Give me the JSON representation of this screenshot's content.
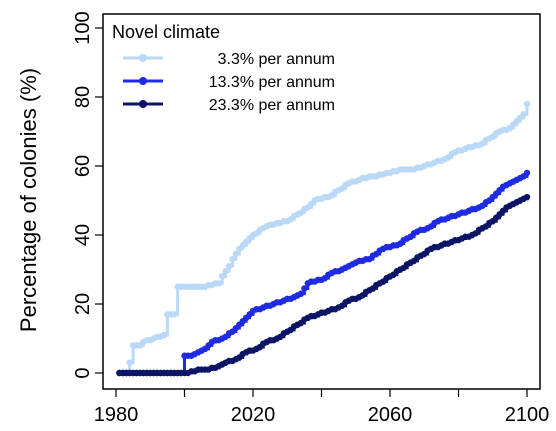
{
  "chart_data": {
    "type": "line",
    "ylabel": "Percentage of colonies (%)",
    "xlabel": "",
    "xlim": [
      1980,
      2100
    ],
    "ylim": [
      0,
      100
    ],
    "x_ticks": [
      1980,
      2020,
      2060,
      2100
    ],
    "y_ticks": [
      0,
      20,
      40,
      60,
      80,
      100
    ],
    "legend": {
      "title": "Novel climate",
      "position": "top-left"
    },
    "series": [
      {
        "name": "3.3% per annum",
        "color": "#b9d9f6",
        "points": [
          [
            1981,
            0
          ],
          [
            1983,
            0
          ],
          [
            1984,
            3
          ],
          [
            1985,
            8
          ],
          [
            1987,
            8
          ],
          [
            1988,
            9
          ],
          [
            1991,
            10
          ],
          [
            1994,
            11
          ],
          [
            1995,
            17
          ],
          [
            1997,
            17
          ],
          [
            1998,
            25
          ],
          [
            2005,
            25
          ],
          [
            2010,
            26
          ],
          [
            2011,
            28
          ],
          [
            2013,
            31
          ],
          [
            2014,
            33
          ],
          [
            2016,
            36
          ],
          [
            2018,
            38
          ],
          [
            2020,
            40
          ],
          [
            2023,
            42
          ],
          [
            2025,
            43
          ],
          [
            2030,
            44
          ],
          [
            2033,
            46
          ],
          [
            2036,
            48
          ],
          [
            2038,
            50
          ],
          [
            2042,
            51
          ],
          [
            2045,
            53
          ],
          [
            2048,
            55
          ],
          [
            2051,
            56
          ],
          [
            2055,
            57
          ],
          [
            2060,
            58
          ],
          [
            2063,
            59
          ],
          [
            2067,
            59
          ],
          [
            2070,
            60
          ],
          [
            2073,
            61
          ],
          [
            2076,
            62
          ],
          [
            2079,
            64
          ],
          [
            2082,
            65
          ],
          [
            2086,
            66
          ],
          [
            2089,
            68
          ],
          [
            2092,
            70
          ],
          [
            2095,
            71
          ],
          [
            2097,
            73
          ],
          [
            2099,
            75
          ],
          [
            2100,
            78
          ]
        ]
      },
      {
        "name": "13.3% per annum",
        "color": "#1f2be0",
        "points": [
          [
            1981,
            0
          ],
          [
            1983,
            0
          ],
          [
            1990,
            0
          ],
          [
            1996,
            0
          ],
          [
            1999,
            0
          ],
          [
            2000,
            5
          ],
          [
            2002,
            5
          ],
          [
            2004,
            6
          ],
          [
            2006,
            7
          ],
          [
            2008,
            9
          ],
          [
            2011,
            10
          ],
          [
            2014,
            12
          ],
          [
            2016,
            14
          ],
          [
            2018,
            16
          ],
          [
            2020,
            18
          ],
          [
            2023,
            19
          ],
          [
            2026,
            20
          ],
          [
            2029,
            21
          ],
          [
            2032,
            22
          ],
          [
            2034,
            23
          ],
          [
            2036,
            26
          ],
          [
            2040,
            27
          ],
          [
            2043,
            29
          ],
          [
            2046,
            30
          ],
          [
            2050,
            32
          ],
          [
            2054,
            33
          ],
          [
            2058,
            36
          ],
          [
            2062,
            37
          ],
          [
            2065,
            39
          ],
          [
            2068,
            41
          ],
          [
            2071,
            42
          ],
          [
            2074,
            44
          ],
          [
            2077,
            45
          ],
          [
            2080,
            46
          ],
          [
            2083,
            47
          ],
          [
            2086,
            48
          ],
          [
            2089,
            50
          ],
          [
            2091,
            52
          ],
          [
            2093,
            54
          ],
          [
            2095,
            55
          ],
          [
            2097,
            56
          ],
          [
            2099,
            57
          ],
          [
            2100,
            58
          ]
        ]
      },
      {
        "name": "23.3% per annum",
        "color": "#0b1465",
        "points": [
          [
            1981,
            0
          ],
          [
            1990,
            0
          ],
          [
            2000,
            0
          ],
          [
            2005,
            1
          ],
          [
            2007,
            1
          ],
          [
            2010,
            2
          ],
          [
            2012,
            3
          ],
          [
            2015,
            4
          ],
          [
            2018,
            6
          ],
          [
            2021,
            7
          ],
          [
            2024,
            9
          ],
          [
            2027,
            10
          ],
          [
            2030,
            12
          ],
          [
            2033,
            14
          ],
          [
            2036,
            16
          ],
          [
            2039,
            17
          ],
          [
            2042,
            18
          ],
          [
            2045,
            19
          ],
          [
            2048,
            21
          ],
          [
            2051,
            22
          ],
          [
            2054,
            24
          ],
          [
            2057,
            26
          ],
          [
            2060,
            28
          ],
          [
            2063,
            30
          ],
          [
            2066,
            32
          ],
          [
            2069,
            34
          ],
          [
            2072,
            36
          ],
          [
            2075,
            37
          ],
          [
            2078,
            38
          ],
          [
            2081,
            39
          ],
          [
            2084,
            40
          ],
          [
            2087,
            42
          ],
          [
            2090,
            44
          ],
          [
            2092,
            46
          ],
          [
            2094,
            48
          ],
          [
            2096,
            49
          ],
          [
            2098,
            50
          ],
          [
            2100,
            51
          ]
        ]
      }
    ]
  }
}
